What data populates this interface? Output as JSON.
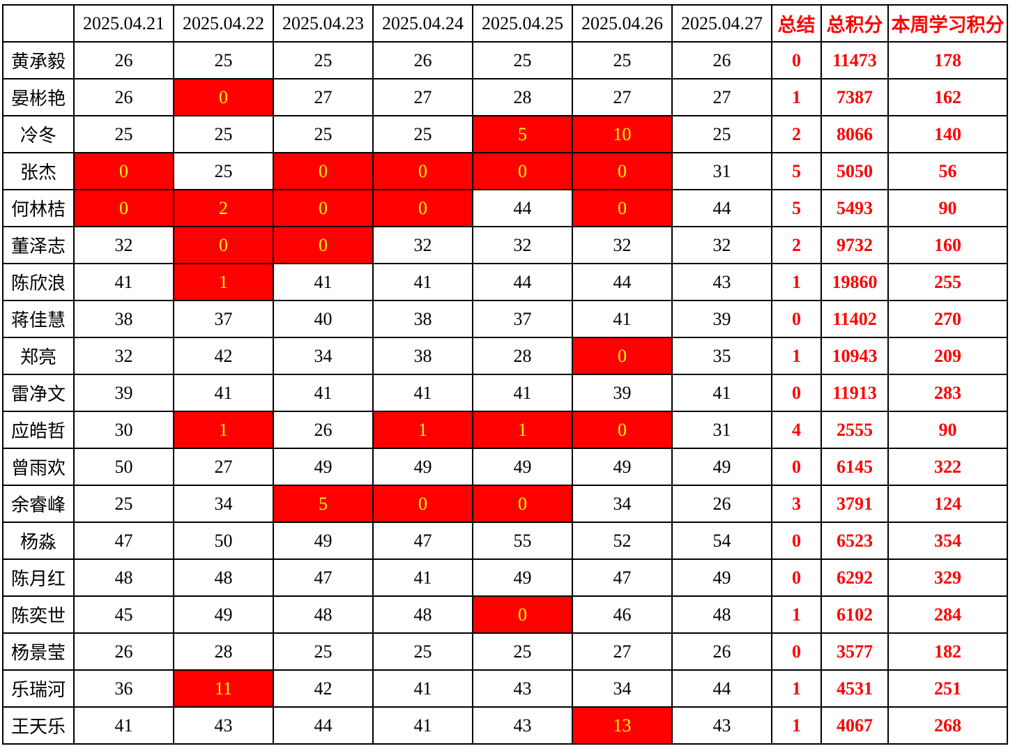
{
  "chart_data": {
    "type": "table",
    "title": "",
    "colors": {
      "highlight_bg": "#ff0000",
      "highlight_text": "#ffff00",
      "accent_text": "#ff0000",
      "border": "#000000",
      "text": "#000000",
      "bg": "#ffffff"
    },
    "columns": [
      {
        "label": "",
        "type": "name"
      },
      {
        "label": "2025.04.21",
        "type": "date"
      },
      {
        "label": "2025.04.22",
        "type": "date"
      },
      {
        "label": "2025.04.23",
        "type": "date"
      },
      {
        "label": "2025.04.24",
        "type": "date"
      },
      {
        "label": "2025.04.25",
        "type": "date"
      },
      {
        "label": "2025.04.26",
        "type": "date"
      },
      {
        "label": "2025.04.27",
        "type": "date"
      },
      {
        "label": "总结",
        "type": "summary",
        "accent": true
      },
      {
        "label": "总积分",
        "type": "total",
        "accent": true
      },
      {
        "label": "本周学习积分",
        "type": "week",
        "accent": true
      }
    ],
    "rows": [
      {
        "name": "黄承毅",
        "days": [
          26,
          25,
          25,
          26,
          25,
          25,
          26
        ],
        "highlight_days": [],
        "summary": 0,
        "total": 11473,
        "week": 178
      },
      {
        "name": "晏彬艳",
        "days": [
          26,
          0,
          27,
          27,
          28,
          27,
          27
        ],
        "highlight_days": [
          1
        ],
        "summary": 1,
        "total": 7387,
        "week": 162
      },
      {
        "name": "冷冬",
        "days": [
          25,
          25,
          25,
          25,
          5,
          10,
          25
        ],
        "highlight_days": [
          4,
          5
        ],
        "summary": 2,
        "total": 8066,
        "week": 140
      },
      {
        "name": "张杰",
        "days": [
          0,
          25,
          0,
          0,
          0,
          0,
          31
        ],
        "highlight_days": [
          0,
          2,
          3,
          4,
          5
        ],
        "summary": 5,
        "total": 5050,
        "week": 56
      },
      {
        "name": "何林桔",
        "days": [
          0,
          2,
          0,
          0,
          44,
          0,
          44
        ],
        "highlight_days": [
          0,
          1,
          2,
          3,
          5
        ],
        "summary": 5,
        "total": 5493,
        "week": 90
      },
      {
        "name": "董泽志",
        "days": [
          32,
          0,
          0,
          32,
          32,
          32,
          32
        ],
        "highlight_days": [
          1,
          2
        ],
        "summary": 2,
        "total": 9732,
        "week": 160
      },
      {
        "name": "陈欣浪",
        "days": [
          41,
          1,
          41,
          41,
          44,
          44,
          43
        ],
        "highlight_days": [
          1
        ],
        "summary": 1,
        "total": 19860,
        "week": 255
      },
      {
        "name": "蒋佳慧",
        "days": [
          38,
          37,
          40,
          38,
          37,
          41,
          39
        ],
        "highlight_days": [],
        "summary": 0,
        "total": 11402,
        "week": 270
      },
      {
        "name": "郑亮",
        "days": [
          32,
          42,
          34,
          38,
          28,
          0,
          35
        ],
        "highlight_days": [
          5
        ],
        "summary": 1,
        "total": 10943,
        "week": 209
      },
      {
        "name": "雷净文",
        "days": [
          39,
          41,
          41,
          41,
          41,
          39,
          41
        ],
        "highlight_days": [],
        "summary": 0,
        "total": 11913,
        "week": 283
      },
      {
        "name": "应皓哲",
        "days": [
          30,
          1,
          26,
          1,
          1,
          0,
          31
        ],
        "highlight_days": [
          1,
          3,
          4,
          5
        ],
        "summary": 4,
        "total": 2555,
        "week": 90
      },
      {
        "name": "曾雨欢",
        "days": [
          50,
          27,
          49,
          49,
          49,
          49,
          49
        ],
        "highlight_days": [],
        "summary": 0,
        "total": 6145,
        "week": 322
      },
      {
        "name": "余睿峰",
        "days": [
          25,
          34,
          5,
          0,
          0,
          34,
          26
        ],
        "highlight_days": [
          2,
          3,
          4
        ],
        "summary": 3,
        "total": 3791,
        "week": 124
      },
      {
        "name": "杨淼",
        "days": [
          47,
          50,
          49,
          47,
          55,
          52,
          54
        ],
        "highlight_days": [],
        "summary": 0,
        "total": 6523,
        "week": 354
      },
      {
        "name": "陈月红",
        "days": [
          48,
          48,
          47,
          41,
          49,
          47,
          49
        ],
        "highlight_days": [],
        "summary": 0,
        "total": 6292,
        "week": 329
      },
      {
        "name": "陈奕世",
        "days": [
          45,
          49,
          48,
          48,
          0,
          46,
          48
        ],
        "highlight_days": [
          4
        ],
        "summary": 1,
        "total": 6102,
        "week": 284
      },
      {
        "name": "杨景莹",
        "days": [
          26,
          28,
          25,
          25,
          25,
          27,
          26
        ],
        "highlight_days": [],
        "summary": 0,
        "total": 3577,
        "week": 182
      },
      {
        "name": "乐瑞河",
        "days": [
          36,
          11,
          42,
          41,
          43,
          34,
          44
        ],
        "highlight_days": [
          1
        ],
        "summary": 1,
        "total": 4531,
        "week": 251
      },
      {
        "name": "王天乐",
        "days": [
          41,
          43,
          44,
          41,
          43,
          13,
          43
        ],
        "highlight_days": [
          5
        ],
        "summary": 1,
        "total": 4067,
        "week": 268
      }
    ]
  }
}
